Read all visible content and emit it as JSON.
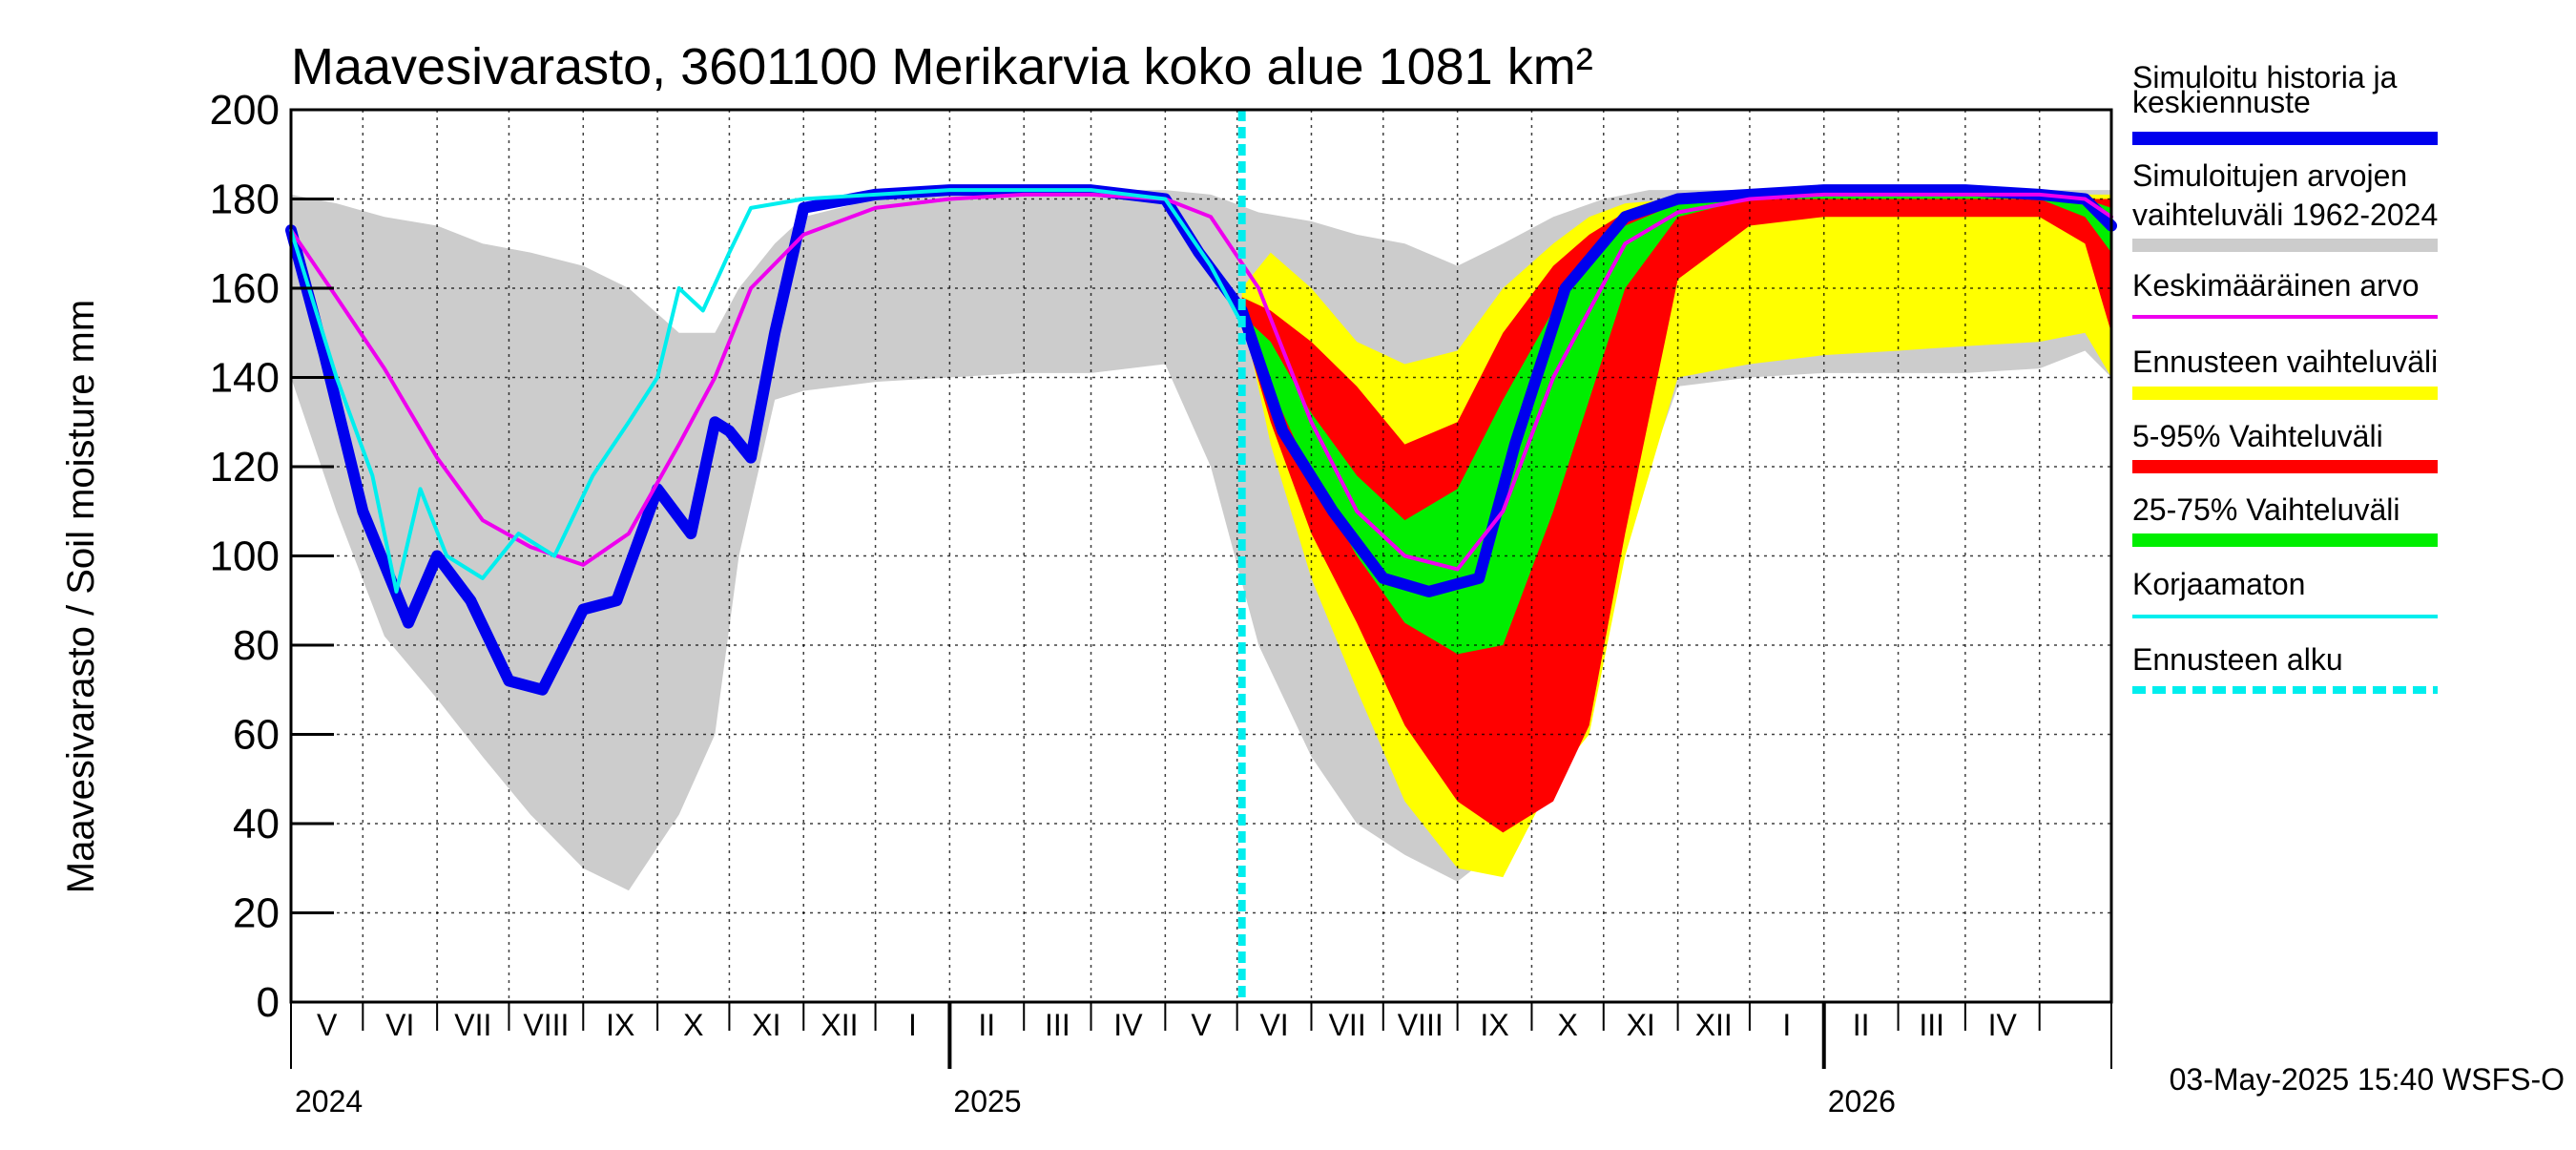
{
  "chart_data": {
    "type": "area",
    "title": "Maavesivarasto, 3601100 Merikarvia koko alue 1081 km²",
    "ylabel": "Maavesivarasto / Soil moisture   mm",
    "ylim": [
      0,
      200
    ],
    "yticks": [
      0,
      20,
      40,
      60,
      80,
      100,
      120,
      140,
      160,
      180,
      200
    ],
    "grid": true,
    "legend_position": "right",
    "x_axis": {
      "start": "2024-04-01",
      "end": "2026-05-01",
      "month_labels": [
        "V",
        "VI",
        "VII",
        "VIII",
        "IX",
        "X",
        "XI",
        "XII",
        "I",
        "II",
        "III",
        "IV",
        "V",
        "VI",
        "VII",
        "VIII",
        "IX",
        "X",
        "XI",
        "XII",
        "I",
        "II",
        "III",
        "IV"
      ],
      "year_labels": [
        {
          "label": "2024",
          "date": "2024-04-01"
        },
        {
          "label": "2025",
          "date": "2025-01-01"
        },
        {
          "label": "2026",
          "date": "2026-01-01"
        }
      ]
    },
    "forecast_start": "2025-05-03",
    "legend": [
      {
        "label": "Simuloitu historia ja keskiennuste",
        "color": "#0000ee",
        "style": "thick"
      },
      {
        "label": "Simuloitujen arvojen vaihteluväli 1962-2024",
        "color": "#cccccc",
        "style": "thick"
      },
      {
        "label": "Keskimääräinen arvo",
        "color": "#ee00ee",
        "style": "thin"
      },
      {
        "label": "Ennusteen vaihteluväli",
        "color": "#ffff00",
        "style": "thick"
      },
      {
        "label": "5-95% Vaihteluväli",
        "color": "#ff0000",
        "style": "thick"
      },
      {
        "label": "25-75% Vaihteluväli",
        "color": "#00ee00",
        "style": "thick"
      },
      {
        "label": "Korjaamaton",
        "color": "#00eeee",
        "style": "thin"
      },
      {
        "label": "Ennusteen alku",
        "color": "#00eeee",
        "style": "dashed"
      }
    ],
    "series": [
      {
        "name": "Simuloitujen arvojen vaihteluväli 1962-2024",
        "kind": "band",
        "color": "#cccccc",
        "x": [
          "2024-04-01",
          "2024-04-20",
          "2024-05-10",
          "2024-06-01",
          "2024-06-20",
          "2024-07-10",
          "2024-08-01",
          "2024-08-20",
          "2024-09-10",
          "2024-09-25",
          "2024-10-05",
          "2024-10-20",
          "2024-11-01",
          "2024-12-01",
          "2025-01-01",
          "2025-02-01",
          "2025-03-01",
          "2025-04-01",
          "2025-04-20",
          "2025-05-10",
          "2025-06-01",
          "2025-06-20",
          "2025-07-10",
          "2025-08-01",
          "2025-08-20",
          "2025-09-10",
          "2025-10-01",
          "2025-10-20",
          "2025-11-01",
          "2025-12-01",
          "2026-01-01",
          "2026-02-01",
          "2026-03-01",
          "2026-04-01",
          "2026-04-20",
          "2026-05-01"
        ],
        "low": [
          140,
          110,
          82,
          68,
          55,
          42,
          30,
          25,
          42,
          60,
          100,
          135,
          137,
          139,
          140,
          141,
          141,
          143,
          120,
          80,
          55,
          40,
          33,
          27,
          35,
          48,
          105,
          120,
          138,
          140,
          141,
          141,
          141,
          142,
          146,
          140
        ],
        "high": [
          181,
          179,
          176,
          174,
          170,
          168,
          165,
          160,
          150,
          150,
          160,
          170,
          176,
          180,
          181,
          181,
          182,
          182,
          181,
          177,
          175,
          172,
          170,
          165,
          170,
          176,
          180,
          182,
          182,
          182,
          182,
          182,
          182,
          182,
          182,
          182
        ]
      },
      {
        "name": "Ennusteen vaihteluväli",
        "kind": "band",
        "color": "#ffff00",
        "x": [
          "2025-05-03",
          "2025-05-15",
          "2025-06-01",
          "2025-06-20",
          "2025-07-10",
          "2025-08-01",
          "2025-08-20",
          "2025-09-10",
          "2025-09-25",
          "2025-10-10",
          "2025-11-01",
          "2025-12-01",
          "2026-01-01",
          "2026-02-01",
          "2026-03-01",
          "2026-04-01",
          "2026-04-20",
          "2026-05-01"
        ],
        "low": [
          155,
          125,
          95,
          70,
          45,
          30,
          28,
          50,
          60,
          100,
          140,
          143,
          145,
          146,
          147,
          148,
          150,
          140
        ],
        "high": [
          160,
          168,
          160,
          148,
          143,
          146,
          160,
          170,
          176,
          179,
          180,
          180,
          180,
          180,
          181,
          181,
          181,
          181
        ]
      },
      {
        "name": "5-95% Vaihteluväli",
        "kind": "band",
        "color": "#ff0000",
        "x": [
          "2025-05-03",
          "2025-05-15",
          "2025-06-01",
          "2025-06-20",
          "2025-07-10",
          "2025-08-01",
          "2025-08-20",
          "2025-09-10",
          "2025-09-25",
          "2025-10-10",
          "2025-11-01",
          "2025-12-01",
          "2026-01-01",
          "2026-02-01",
          "2026-03-01",
          "2026-04-01",
          "2026-04-20",
          "2026-05-01"
        ],
        "low": [
          152,
          130,
          105,
          85,
          62,
          45,
          38,
          45,
          62,
          105,
          162,
          174,
          176,
          176,
          176,
          176,
          170,
          150
        ],
        "high": [
          158,
          155,
          148,
          138,
          125,
          130,
          150,
          165,
          172,
          177,
          179,
          180,
          180,
          180,
          180,
          180,
          180,
          180
        ]
      },
      {
        "name": "25-75% Vaihteluväli",
        "kind": "band",
        "color": "#00ee00",
        "x": [
          "2025-05-03",
          "2025-05-15",
          "2025-06-01",
          "2025-06-20",
          "2025-07-10",
          "2025-08-01",
          "2025-08-20",
          "2025-09-10",
          "2025-09-25",
          "2025-10-10",
          "2025-11-01",
          "2025-12-01",
          "2026-01-01",
          "2026-02-01",
          "2026-03-01",
          "2026-04-01",
          "2026-04-20",
          "2026-05-01"
        ],
        "low": [
          151,
          138,
          118,
          100,
          85,
          78,
          80,
          110,
          135,
          160,
          176,
          180,
          180,
          180,
          180,
          180,
          176,
          168
        ],
        "high": [
          154,
          148,
          132,
          118,
          108,
          115,
          135,
          155,
          165,
          174,
          179,
          180,
          181,
          181,
          181,
          181,
          180,
          178
        ]
      },
      {
        "name": "Simuloitu historia ja keskiennuste",
        "kind": "line",
        "color": "#0000ee",
        "width": 12,
        "x": [
          "2024-04-01",
          "2024-04-15",
          "2024-05-01",
          "2024-05-20",
          "2024-06-01",
          "2024-06-15",
          "2024-07-01",
          "2024-07-15",
          "2024-08-01",
          "2024-08-15",
          "2024-09-01",
          "2024-09-15",
          "2024-09-25",
          "2024-10-01",
          "2024-10-10",
          "2024-10-20",
          "2024-11-01",
          "2024-12-01",
          "2025-01-01",
          "2025-02-01",
          "2025-03-01",
          "2025-04-01",
          "2025-04-15",
          "2025-05-03",
          "2025-05-20",
          "2025-06-10",
          "2025-07-01",
          "2025-07-20",
          "2025-08-10",
          "2025-08-25",
          "2025-09-15",
          "2025-10-10",
          "2025-11-01",
          "2025-12-01",
          "2026-01-01",
          "2026-02-01",
          "2026-03-01",
          "2026-04-01",
          "2026-04-20",
          "2026-05-01"
        ],
        "values": [
          173,
          145,
          110,
          85,
          100,
          90,
          72,
          70,
          88,
          90,
          115,
          105,
          130,
          128,
          122,
          150,
          178,
          181,
          182,
          182,
          182,
          180,
          168,
          155,
          128,
          110,
          95,
          92,
          95,
          125,
          160,
          176,
          180,
          181,
          182,
          182,
          182,
          181,
          180,
          174
        ]
      },
      {
        "name": "Keskimääräinen arvo",
        "kind": "line",
        "color": "#ee00ee",
        "width": 4,
        "x": [
          "2024-04-01",
          "2024-04-20",
          "2024-05-10",
          "2024-06-01",
          "2024-06-20",
          "2024-07-10",
          "2024-08-01",
          "2024-08-20",
          "2024-09-10",
          "2024-09-25",
          "2024-10-10",
          "2024-11-01",
          "2024-12-01",
          "2025-01-01",
          "2025-02-01",
          "2025-03-01",
          "2025-04-01",
          "2025-04-20",
          "2025-05-10",
          "2025-06-01",
          "2025-06-20",
          "2025-07-10",
          "2025-08-01",
          "2025-08-20",
          "2025-09-10",
          "2025-09-25",
          "2025-10-10",
          "2025-11-01",
          "2025-12-01",
          "2026-01-01",
          "2026-02-01",
          "2026-03-01",
          "2026-04-01",
          "2026-04-20",
          "2026-05-01"
        ],
        "values": [
          173,
          158,
          142,
          122,
          108,
          102,
          98,
          105,
          125,
          140,
          160,
          172,
          178,
          180,
          181,
          181,
          180,
          176,
          160,
          130,
          110,
          100,
          97,
          110,
          140,
          155,
          170,
          177,
          180,
          181,
          181,
          181,
          181,
          180,
          176
        ]
      },
      {
        "name": "Korjaamaton",
        "kind": "line",
        "color": "#00eeee",
        "width": 4,
        "x": [
          "2024-04-01",
          "2024-04-20",
          "2024-05-05",
          "2024-05-15",
          "2024-05-25",
          "2024-06-05",
          "2024-06-20",
          "2024-07-05",
          "2024-07-20",
          "2024-08-05",
          "2024-08-20",
          "2024-09-01",
          "2024-09-10",
          "2024-09-20",
          "2024-10-01",
          "2024-10-10",
          "2024-11-01",
          "2024-12-01",
          "2025-01-01",
          "2025-02-01",
          "2025-03-01",
          "2025-04-01",
          "2025-04-20",
          "2025-05-03"
        ],
        "values": [
          173,
          140,
          118,
          92,
          115,
          100,
          95,
          105,
          100,
          118,
          130,
          140,
          160,
          155,
          168,
          178,
          180,
          181,
          182,
          182,
          182,
          180,
          165,
          152
        ]
      }
    ]
  },
  "footer": {
    "timestamp": "03-May-2025 15:40 WSFS-O"
  }
}
